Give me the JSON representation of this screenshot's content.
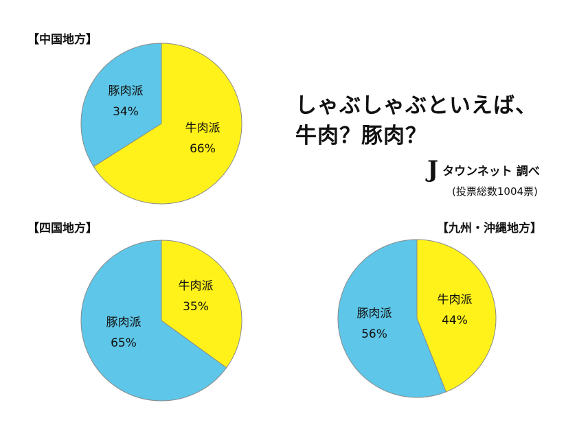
{
  "title_line1": "しゃぶしゃぶといえば、",
  "title_line2": "牛肉？豚肉？",
  "source_brand": "タウンネット",
  "source_suffix": "調べ",
  "source_logo_letter": "J",
  "total_votes": "(投票総数1004票)",
  "colors": {
    "beef": "#fff21a",
    "pork": "#5ec6e8"
  },
  "chart_data": [
    {
      "type": "pie",
      "title": "【中国地方】",
      "categories": [
        "牛肉派",
        "豚肉派"
      ],
      "values": [
        66,
        34
      ],
      "labels": [
        "66%",
        "34%"
      ]
    },
    {
      "type": "pie",
      "title": "【四国地方】",
      "categories": [
        "牛肉派",
        "豚肉派"
      ],
      "values": [
        35,
        65
      ],
      "labels": [
        "35%",
        "65%"
      ]
    },
    {
      "type": "pie",
      "title": "【九州・沖縄地方】",
      "categories": [
        "牛肉派",
        "豚肉派"
      ],
      "values": [
        44,
        56
      ],
      "labels": [
        "44%",
        "56%"
      ]
    }
  ]
}
